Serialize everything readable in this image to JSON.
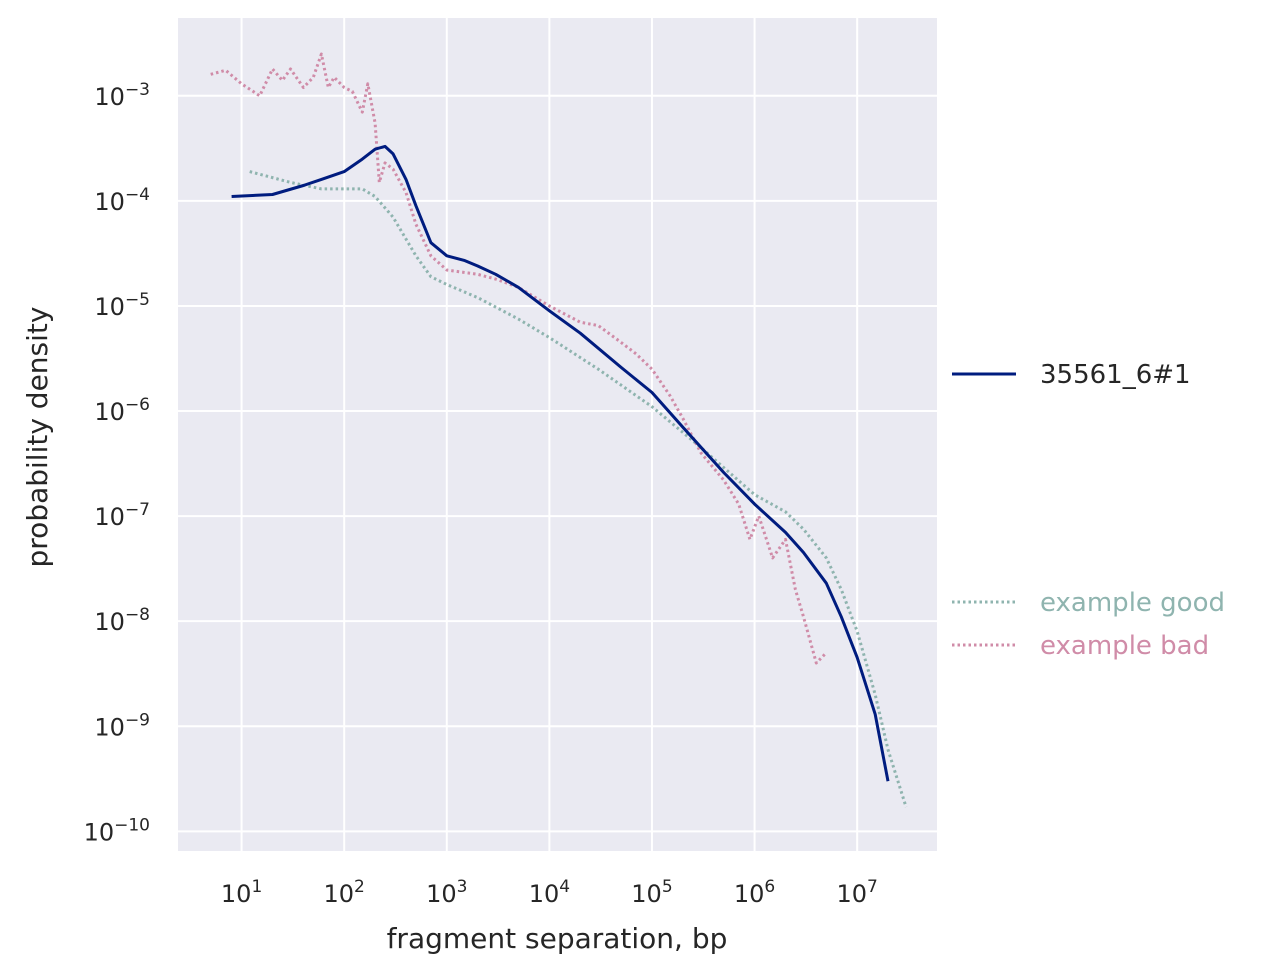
{
  "chart_data": {
    "type": "line",
    "title": "",
    "xlabel": "fragment separation, bp",
    "ylabel": "probability density",
    "xscale": "log",
    "yscale": "log",
    "xlim": [
      2.4,
      60000000
    ],
    "ylim": [
      6.5e-11,
      0.0055
    ],
    "grid": true,
    "background": "#eaeaf2",
    "x_ticks": [
      {
        "value": 10,
        "base": "10",
        "exp": "1"
      },
      {
        "value": 100,
        "base": "10",
        "exp": "2"
      },
      {
        "value": 1000,
        "base": "10",
        "exp": "3"
      },
      {
        "value": 10000,
        "base": "10",
        "exp": "4"
      },
      {
        "value": 100000,
        "base": "10",
        "exp": "5"
      },
      {
        "value": 1000000,
        "base": "10",
        "exp": "6"
      },
      {
        "value": 10000000,
        "base": "10",
        "exp": "7"
      }
    ],
    "y_ticks": [
      {
        "value": 1e-10,
        "base": "10",
        "exp": "−10"
      },
      {
        "value": 1e-09,
        "base": "10",
        "exp": "−9"
      },
      {
        "value": 1e-08,
        "base": "10",
        "exp": "−8"
      },
      {
        "value": 1e-07,
        "base": "10",
        "exp": "−7"
      },
      {
        "value": 1e-06,
        "base": "10",
        "exp": "−6"
      },
      {
        "value": 1e-05,
        "base": "10",
        "exp": "−5"
      },
      {
        "value": 0.0001,
        "base": "10",
        "exp": "−4"
      },
      {
        "value": 0.001,
        "base": "10",
        "exp": "−3"
      }
    ],
    "legend": {
      "placement": "right outside"
    },
    "series": [
      {
        "name": "35561_6#1",
        "color": "#001c7f",
        "style": "solid",
        "x": [
          8,
          20,
          40,
          60,
          100,
          150,
          200,
          250,
          300,
          400,
          500,
          700,
          1000,
          1500,
          2000,
          3000,
          5000,
          10000,
          20000,
          50000,
          100000,
          200000,
          500000,
          1000000,
          2000000,
          3000000,
          5000000,
          7000000,
          10000000,
          15000000,
          20000000
        ],
        "y": [
          0.00011,
          0.000115,
          0.00014,
          0.00016,
          0.00019,
          0.00025,
          0.00031,
          0.00033,
          0.00028,
          0.00016,
          9e-05,
          4e-05,
          3e-05,
          2.7e-05,
          2.4e-05,
          2e-05,
          1.5e-05,
          9e-06,
          5.5e-06,
          2.6e-06,
          1.5e-06,
          7e-07,
          2.6e-07,
          1.3e-07,
          7e-08,
          4.5e-08,
          2.3e-08,
          1.1e-08,
          4.5e-09,
          1.3e-09,
          3e-10
        ]
      },
      {
        "name": "example good",
        "color": "#8fb4af",
        "style": "dotted",
        "x": [
          12,
          30,
          60,
          100,
          150,
          200,
          300,
          500,
          700,
          1000,
          2000,
          5000,
          10000,
          30000,
          100000,
          300000,
          1000000,
          2000000,
          3000000,
          5000000,
          7000000,
          10000000,
          15000000,
          20000000,
          30000000
        ],
        "y": [
          0.00019,
          0.00015,
          0.00013,
          0.00013,
          0.00013,
          0.00011,
          7e-05,
          3e-05,
          1.9e-05,
          1.6e-05,
          1.2e-05,
          7.5e-06,
          5e-06,
          2.5e-06,
          1.1e-06,
          4.5e-07,
          1.6e-07,
          1.1e-07,
          7.5e-08,
          4e-08,
          2e-08,
          8e-09,
          2e-09,
          6e-10,
          1.7e-10
        ]
      },
      {
        "name": "example bad",
        "color": "#d08ca8",
        "style": "dotted",
        "x": [
          5,
          7,
          10,
          15,
          20,
          25,
          30,
          40,
          50,
          60,
          70,
          80,
          100,
          120,
          150,
          170,
          200,
          220,
          250,
          300,
          400,
          500,
          700,
          1000,
          2000,
          3000,
          5000,
          10000,
          20000,
          30000,
          50000,
          70000,
          100000,
          150000,
          200000,
          300000,
          500000,
          700000,
          900000,
          1100000,
          1500000,
          2000000,
          2500000,
          3000000,
          4000000,
          5000000
        ],
        "y": [
          0.0016,
          0.00175,
          0.0013,
          0.001,
          0.0018,
          0.0014,
          0.0018,
          0.0012,
          0.0015,
          0.0025,
          0.0012,
          0.0015,
          0.0012,
          0.0011,
          0.0007,
          0.0013,
          0.00055,
          0.00015,
          0.00023,
          0.0002,
          0.00012,
          6e-05,
          3e-05,
          2.2e-05,
          2e-05,
          1.8e-05,
          1.5e-05,
          1e-05,
          7e-06,
          6.5e-06,
          4.5e-06,
          3.5e-06,
          2.5e-06,
          1.4e-06,
          8.5e-07,
          4e-07,
          2.2e-07,
          1.3e-07,
          6e-08,
          1e-07,
          4e-08,
          6e-08,
          2e-08,
          1.1e-08,
          4e-09,
          5e-09
        ]
      }
    ]
  }
}
